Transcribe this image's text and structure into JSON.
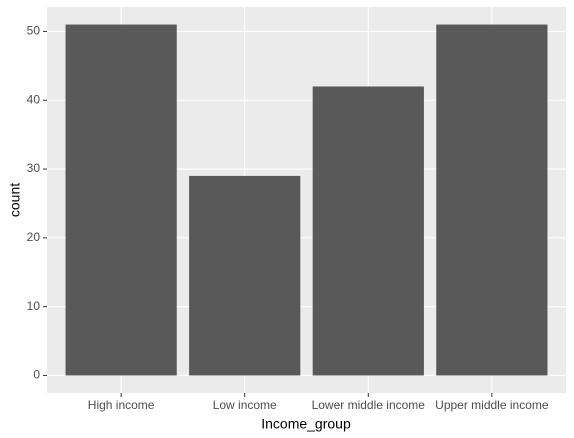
{
  "chart_data": {
    "type": "bar",
    "x_label": "Income_group",
    "y_label": "count",
    "categories": [
      "High income",
      "Low income",
      "Lower middle income",
      "Upper middle income"
    ],
    "values": [
      51,
      29,
      42,
      51
    ],
    "color": "#595959",
    "ylim": [
      -2.55,
      53.55
    ],
    "yticks": [
      0,
      10,
      20,
      30,
      40,
      50
    ],
    "grid": true
  }
}
